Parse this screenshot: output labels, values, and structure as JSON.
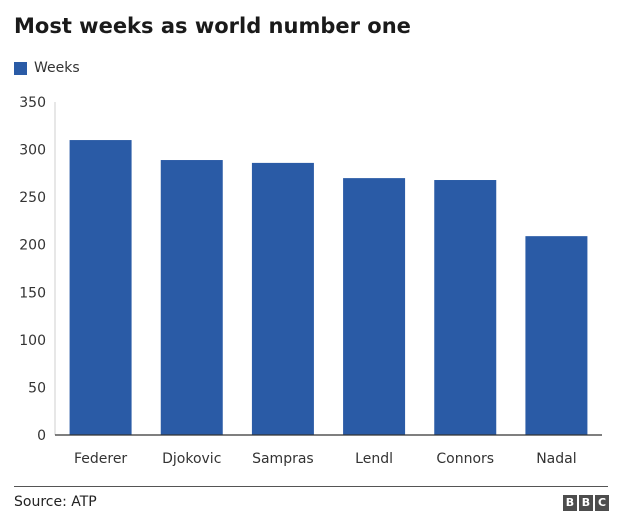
{
  "chart_data": {
    "type": "bar",
    "title": "Most weeks as world number one",
    "categories": [
      "Federer",
      "Djokovic",
      "Sampras",
      "Lendl",
      "Connors",
      "Nadal"
    ],
    "series": [
      {
        "name": "Weeks",
        "values": [
          310,
          289,
          286,
          270,
          268,
          209
        ]
      }
    ],
    "ylim": [
      0,
      350
    ],
    "yticks": [
      0,
      50,
      100,
      150,
      200,
      250,
      300,
      350
    ],
    "xlabel": "",
    "ylabel": "",
    "grid": false,
    "legend_position": "top-left",
    "bar_color": "#2a5ba6"
  },
  "footer": {
    "source": "Source: ATP",
    "logo_letters": [
      "B",
      "B",
      "C"
    ]
  }
}
